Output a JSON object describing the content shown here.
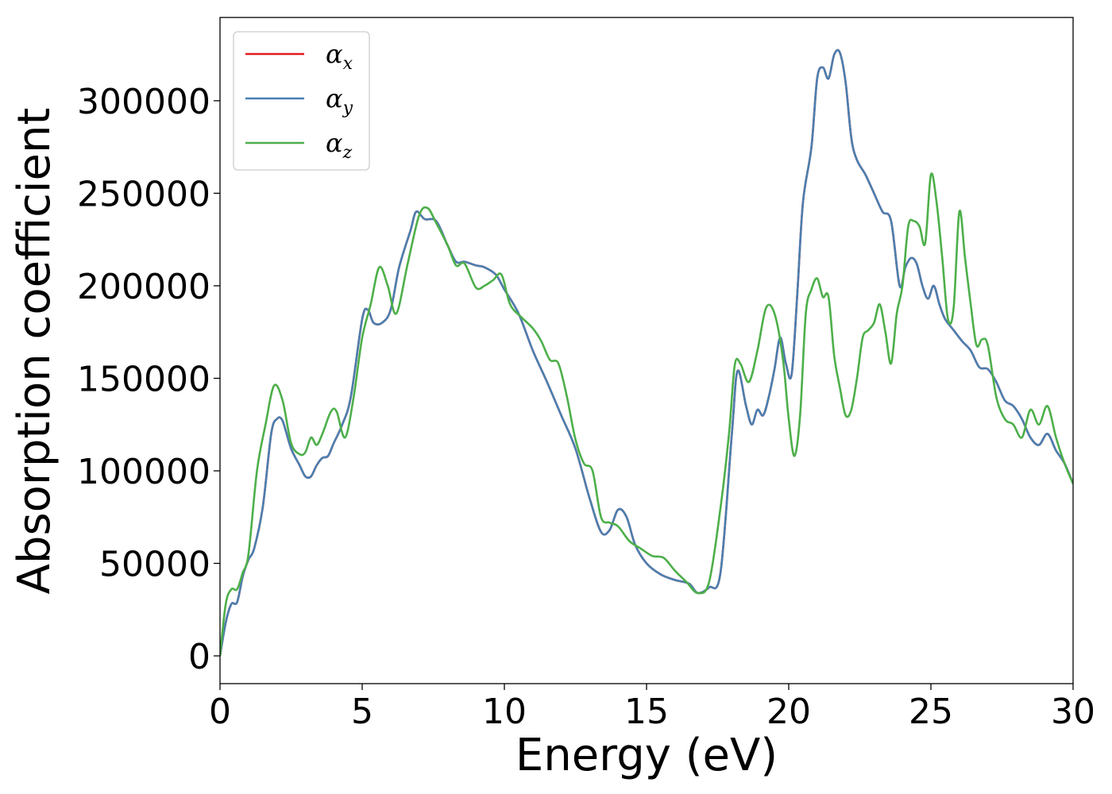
{
  "chart_data": {
    "type": "line",
    "xlabel": "Energy (eV)",
    "ylabel": "Absorption coefficient",
    "xlim": [
      0,
      30
    ],
    "ylim": [
      -15000,
      345000
    ],
    "xticks": [
      0,
      5,
      10,
      15,
      20,
      25,
      30
    ],
    "xtick_labels": [
      "0",
      "5",
      "10",
      "15",
      "20",
      "25",
      "30"
    ],
    "yticks": [
      0,
      50000,
      100000,
      150000,
      200000,
      250000,
      300000
    ],
    "ytick_labels": [
      "0",
      "50000",
      "100000",
      "150000",
      "200000",
      "250000",
      "300000"
    ],
    "grid": false,
    "legend": {
      "placement": "top-left"
    },
    "series": [
      {
        "name": "α_x",
        "base": "α",
        "sub": "x",
        "color": "#e41a1c",
        "x": [
          0,
          0.2,
          0.4,
          0.6,
          0.8,
          1.0,
          1.2,
          1.5,
          1.8,
          2.0,
          2.2,
          2.5,
          2.8,
          3.0,
          3.2,
          3.4,
          3.6,
          3.8,
          4.0,
          4.3,
          4.6,
          5.0,
          5.2,
          5.4,
          5.7,
          6.0,
          6.3,
          6.7,
          6.9,
          7.2,
          7.6,
          8.0,
          8.3,
          8.6,
          9.0,
          9.3,
          9.7,
          10.0,
          10.5,
          11.0,
          11.5,
          12.0,
          12.5,
          13.0,
          13.4,
          13.7,
          14.0,
          14.3,
          14.6,
          15.0,
          15.5,
          16.0,
          16.5,
          16.8,
          17.2,
          17.6,
          18.0,
          18.2,
          18.5,
          18.7,
          18.9,
          19.1,
          19.3,
          19.5,
          19.7,
          19.9,
          20.1,
          20.3,
          20.5,
          20.8,
          21.0,
          21.2,
          21.4,
          21.6,
          21.8,
          22.0,
          22.2,
          22.4,
          22.7,
          23.0,
          23.3,
          23.6,
          23.9,
          24.1,
          24.3,
          24.5,
          24.7,
          24.9,
          25.1,
          25.3,
          25.5,
          25.8,
          26.1,
          26.4,
          26.7,
          27.0,
          27.3,
          27.6,
          27.9,
          28.2,
          28.5,
          28.8,
          29.1,
          29.4,
          29.7,
          30.0
        ],
        "y": [
          0,
          18000,
          28000,
          29000,
          43000,
          52000,
          58000,
          80000,
          120000,
          128000,
          127000,
          112000,
          103000,
          97000,
          97000,
          103000,
          107000,
          108000,
          115000,
          125000,
          140000,
          182000,
          187000,
          180000,
          180000,
          187000,
          210000,
          230000,
          240000,
          236000,
          235000,
          222000,
          213000,
          213000,
          211000,
          210000,
          206000,
          198000,
          185000,
          165000,
          148000,
          130000,
          112000,
          85000,
          67000,
          68000,
          79000,
          75000,
          60000,
          50000,
          44000,
          41000,
          39000,
          34000,
          37000,
          45000,
          120000,
          154000,
          135000,
          125000,
          133000,
          130000,
          140000,
          155000,
          172000,
          158000,
          152000,
          195000,
          245000,
          275000,
          312000,
          318000,
          312000,
          325000,
          326000,
          310000,
          280000,
          268000,
          260000,
          250000,
          240000,
          235000,
          200000,
          210000,
          215000,
          212000,
          200000,
          193000,
          200000,
          190000,
          182000,
          176000,
          170000,
          165000,
          156000,
          155000,
          148000,
          138000,
          135000,
          128000,
          118000,
          114000,
          120000,
          111000,
          104000,
          93000
        ]
      },
      {
        "name": "α_y",
        "base": "α",
        "sub": "y",
        "color": "#4a7fb0",
        "x": [
          0,
          0.2,
          0.4,
          0.6,
          0.8,
          1.0,
          1.2,
          1.5,
          1.8,
          2.0,
          2.2,
          2.5,
          2.8,
          3.0,
          3.2,
          3.4,
          3.6,
          3.8,
          4.0,
          4.3,
          4.6,
          5.0,
          5.2,
          5.4,
          5.7,
          6.0,
          6.3,
          6.7,
          6.9,
          7.2,
          7.6,
          8.0,
          8.3,
          8.6,
          9.0,
          9.3,
          9.7,
          10.0,
          10.5,
          11.0,
          11.5,
          12.0,
          12.5,
          13.0,
          13.4,
          13.7,
          14.0,
          14.3,
          14.6,
          15.0,
          15.5,
          16.0,
          16.5,
          16.8,
          17.2,
          17.6,
          18.0,
          18.2,
          18.5,
          18.7,
          18.9,
          19.1,
          19.3,
          19.5,
          19.7,
          19.9,
          20.1,
          20.3,
          20.5,
          20.8,
          21.0,
          21.2,
          21.4,
          21.6,
          21.8,
          22.0,
          22.2,
          22.4,
          22.7,
          23.0,
          23.3,
          23.6,
          23.9,
          24.1,
          24.3,
          24.5,
          24.7,
          24.9,
          25.1,
          25.3,
          25.5,
          25.8,
          26.1,
          26.4,
          26.7,
          27.0,
          27.3,
          27.6,
          27.9,
          28.2,
          28.5,
          28.8,
          29.1,
          29.4,
          29.7,
          30.0
        ],
        "y": [
          0,
          18000,
          28000,
          29000,
          43000,
          52000,
          58000,
          80000,
          120000,
          128000,
          127000,
          112000,
          103000,
          97000,
          97000,
          103000,
          107000,
          108000,
          115000,
          125000,
          140000,
          182000,
          187000,
          180000,
          180000,
          187000,
          210000,
          230000,
          240000,
          236000,
          235000,
          222000,
          213000,
          213000,
          211000,
          210000,
          206000,
          198000,
          185000,
          165000,
          148000,
          130000,
          112000,
          85000,
          67000,
          68000,
          79000,
          75000,
          60000,
          50000,
          44000,
          41000,
          39000,
          34000,
          37000,
          45000,
          120000,
          154000,
          135000,
          125000,
          133000,
          130000,
          140000,
          155000,
          172000,
          158000,
          152000,
          195000,
          245000,
          275000,
          312000,
          318000,
          312000,
          325000,
          326000,
          310000,
          280000,
          268000,
          260000,
          250000,
          240000,
          235000,
          200000,
          210000,
          215000,
          212000,
          200000,
          193000,
          200000,
          190000,
          182000,
          176000,
          170000,
          165000,
          156000,
          155000,
          148000,
          138000,
          135000,
          128000,
          118000,
          114000,
          120000,
          111000,
          104000,
          93000
        ]
      },
      {
        "name": "α_z",
        "base": "α",
        "sub": "z",
        "color": "#4daf4a",
        "x": [
          0,
          0.2,
          0.4,
          0.6,
          0.8,
          1.0,
          1.3,
          1.6,
          1.9,
          2.2,
          2.5,
          2.8,
          3.0,
          3.2,
          3.4,
          3.6,
          3.9,
          4.1,
          4.4,
          4.7,
          5.0,
          5.3,
          5.6,
          5.9,
          6.2,
          6.6,
          7.0,
          7.3,
          7.6,
          8.0,
          8.3,
          8.6,
          9.0,
          9.3,
          9.6,
          9.9,
          10.2,
          10.6,
          11.0,
          11.3,
          11.6,
          11.9,
          12.2,
          12.5,
          12.8,
          13.1,
          13.4,
          13.7,
          14.0,
          14.4,
          14.8,
          15.2,
          15.6,
          16.0,
          16.4,
          16.8,
          17.2,
          17.6,
          17.9,
          18.1,
          18.3,
          18.6,
          18.9,
          19.2,
          19.5,
          19.8,
          20.0,
          20.2,
          20.4,
          20.6,
          20.8,
          21.0,
          21.2,
          21.4,
          21.6,
          21.8,
          22.0,
          22.2,
          22.4,
          22.6,
          22.8,
          23.0,
          23.2,
          23.4,
          23.6,
          23.8,
          24.0,
          24.2,
          24.4,
          24.6,
          24.8,
          25.0,
          25.2,
          25.4,
          25.6,
          25.8,
          26.0,
          26.2,
          26.4,
          26.6,
          26.8,
          27.0,
          27.3,
          27.6,
          27.9,
          28.2,
          28.5,
          28.8,
          29.1,
          29.4,
          29.7,
          30.0
        ],
        "y": [
          0,
          28000,
          36000,
          36000,
          45000,
          55000,
          100000,
          125000,
          146000,
          138000,
          115000,
          109000,
          110000,
          118000,
          114000,
          120000,
          132000,
          132000,
          118000,
          140000,
          172000,
          190000,
          210000,
          200000,
          185000,
          212000,
          238000,
          242000,
          234000,
          222000,
          211000,
          212000,
          199000,
          200000,
          203000,
          206000,
          190000,
          183000,
          177000,
          170000,
          160000,
          158000,
          140000,
          117000,
          104000,
          100000,
          75000,
          72000,
          70000,
          62000,
          58000,
          54000,
          53000,
          46000,
          40000,
          34000,
          40000,
          80000,
          120000,
          157000,
          158000,
          148000,
          165000,
          188000,
          185000,
          160000,
          128000,
          108000,
          130000,
          185000,
          198000,
          204000,
          194000,
          194000,
          162000,
          145000,
          130000,
          133000,
          150000,
          172000,
          176000,
          180000,
          190000,
          175000,
          158000,
          185000,
          200000,
          232000,
          235000,
          232000,
          223000,
          260000,
          245000,
          215000,
          182000,
          188000,
          240000,
          215000,
          190000,
          168000,
          171000,
          168000,
          140000,
          128000,
          125000,
          118000,
          133000,
          125000,
          135000,
          118000,
          104000,
          93000
        ]
      }
    ]
  }
}
